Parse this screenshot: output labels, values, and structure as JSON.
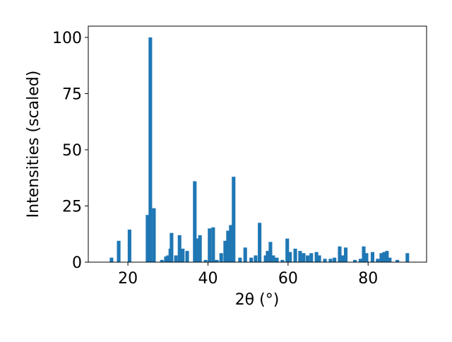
{
  "chart_data": {
    "type": "bar",
    "x_label": "2θ (°)",
    "y_label": "Intensities (scaled)",
    "x": [
      15.9,
      17.7,
      20.4,
      24.9,
      25.6,
      26.5,
      28.5,
      29.5,
      30.0,
      30.6,
      30.9,
      32.0,
      32.9,
      33.7,
      34.8,
      36.7,
      37.4,
      38.0,
      39.4,
      40.4,
      41.3,
      42.2,
      43.3,
      44.3,
      45.0,
      45.7,
      46.4,
      48.0,
      49.3,
      50.8,
      51.9,
      52.9,
      54.4,
      54.9,
      55.6,
      56.3,
      57.2,
      58.6,
      59.8,
      60.5,
      61.8,
      63.0,
      63.9,
      64.9,
      65.8,
      67.1,
      67.8,
      69.2,
      70.6,
      71.6,
      72.9,
      73.7,
      74.4,
      76.7,
      78.1,
      78.9,
      79.6,
      81.1,
      82.4,
      83.3,
      84.0,
      84.7,
      85.4,
      87.3,
      89.8
    ],
    "values": [
      2,
      9.5,
      14.5,
      21,
      100,
      24,
      1,
      2.5,
      3,
      6,
      13,
      3,
      12,
      6,
      5,
      36,
      10.5,
      12,
      1,
      15,
      15.5,
      1,
      4,
      9.5,
      14,
      16.5,
      38,
      2,
      6.5,
      2,
      3,
      17.5,
      3,
      5,
      9,
      3,
      2,
      1,
      10.5,
      4.5,
      6,
      5,
      4,
      3,
      4,
      4.5,
      3,
      1.5,
      1.5,
      2,
      7,
      3,
      6.5,
      1,
      1.5,
      7,
      4,
      4.5,
      1.5,
      4,
      4.5,
      5,
      2,
      1,
      4
    ],
    "color": "#1f77b4",
    "bar_width": 0.9,
    "xlim": [
      10.1,
      94.6
    ],
    "ylim": [
      0,
      105
    ],
    "xticks": [
      20,
      40,
      60,
      80
    ],
    "yticks": [
      0,
      25,
      50,
      75,
      100
    ],
    "grid": false
  }
}
